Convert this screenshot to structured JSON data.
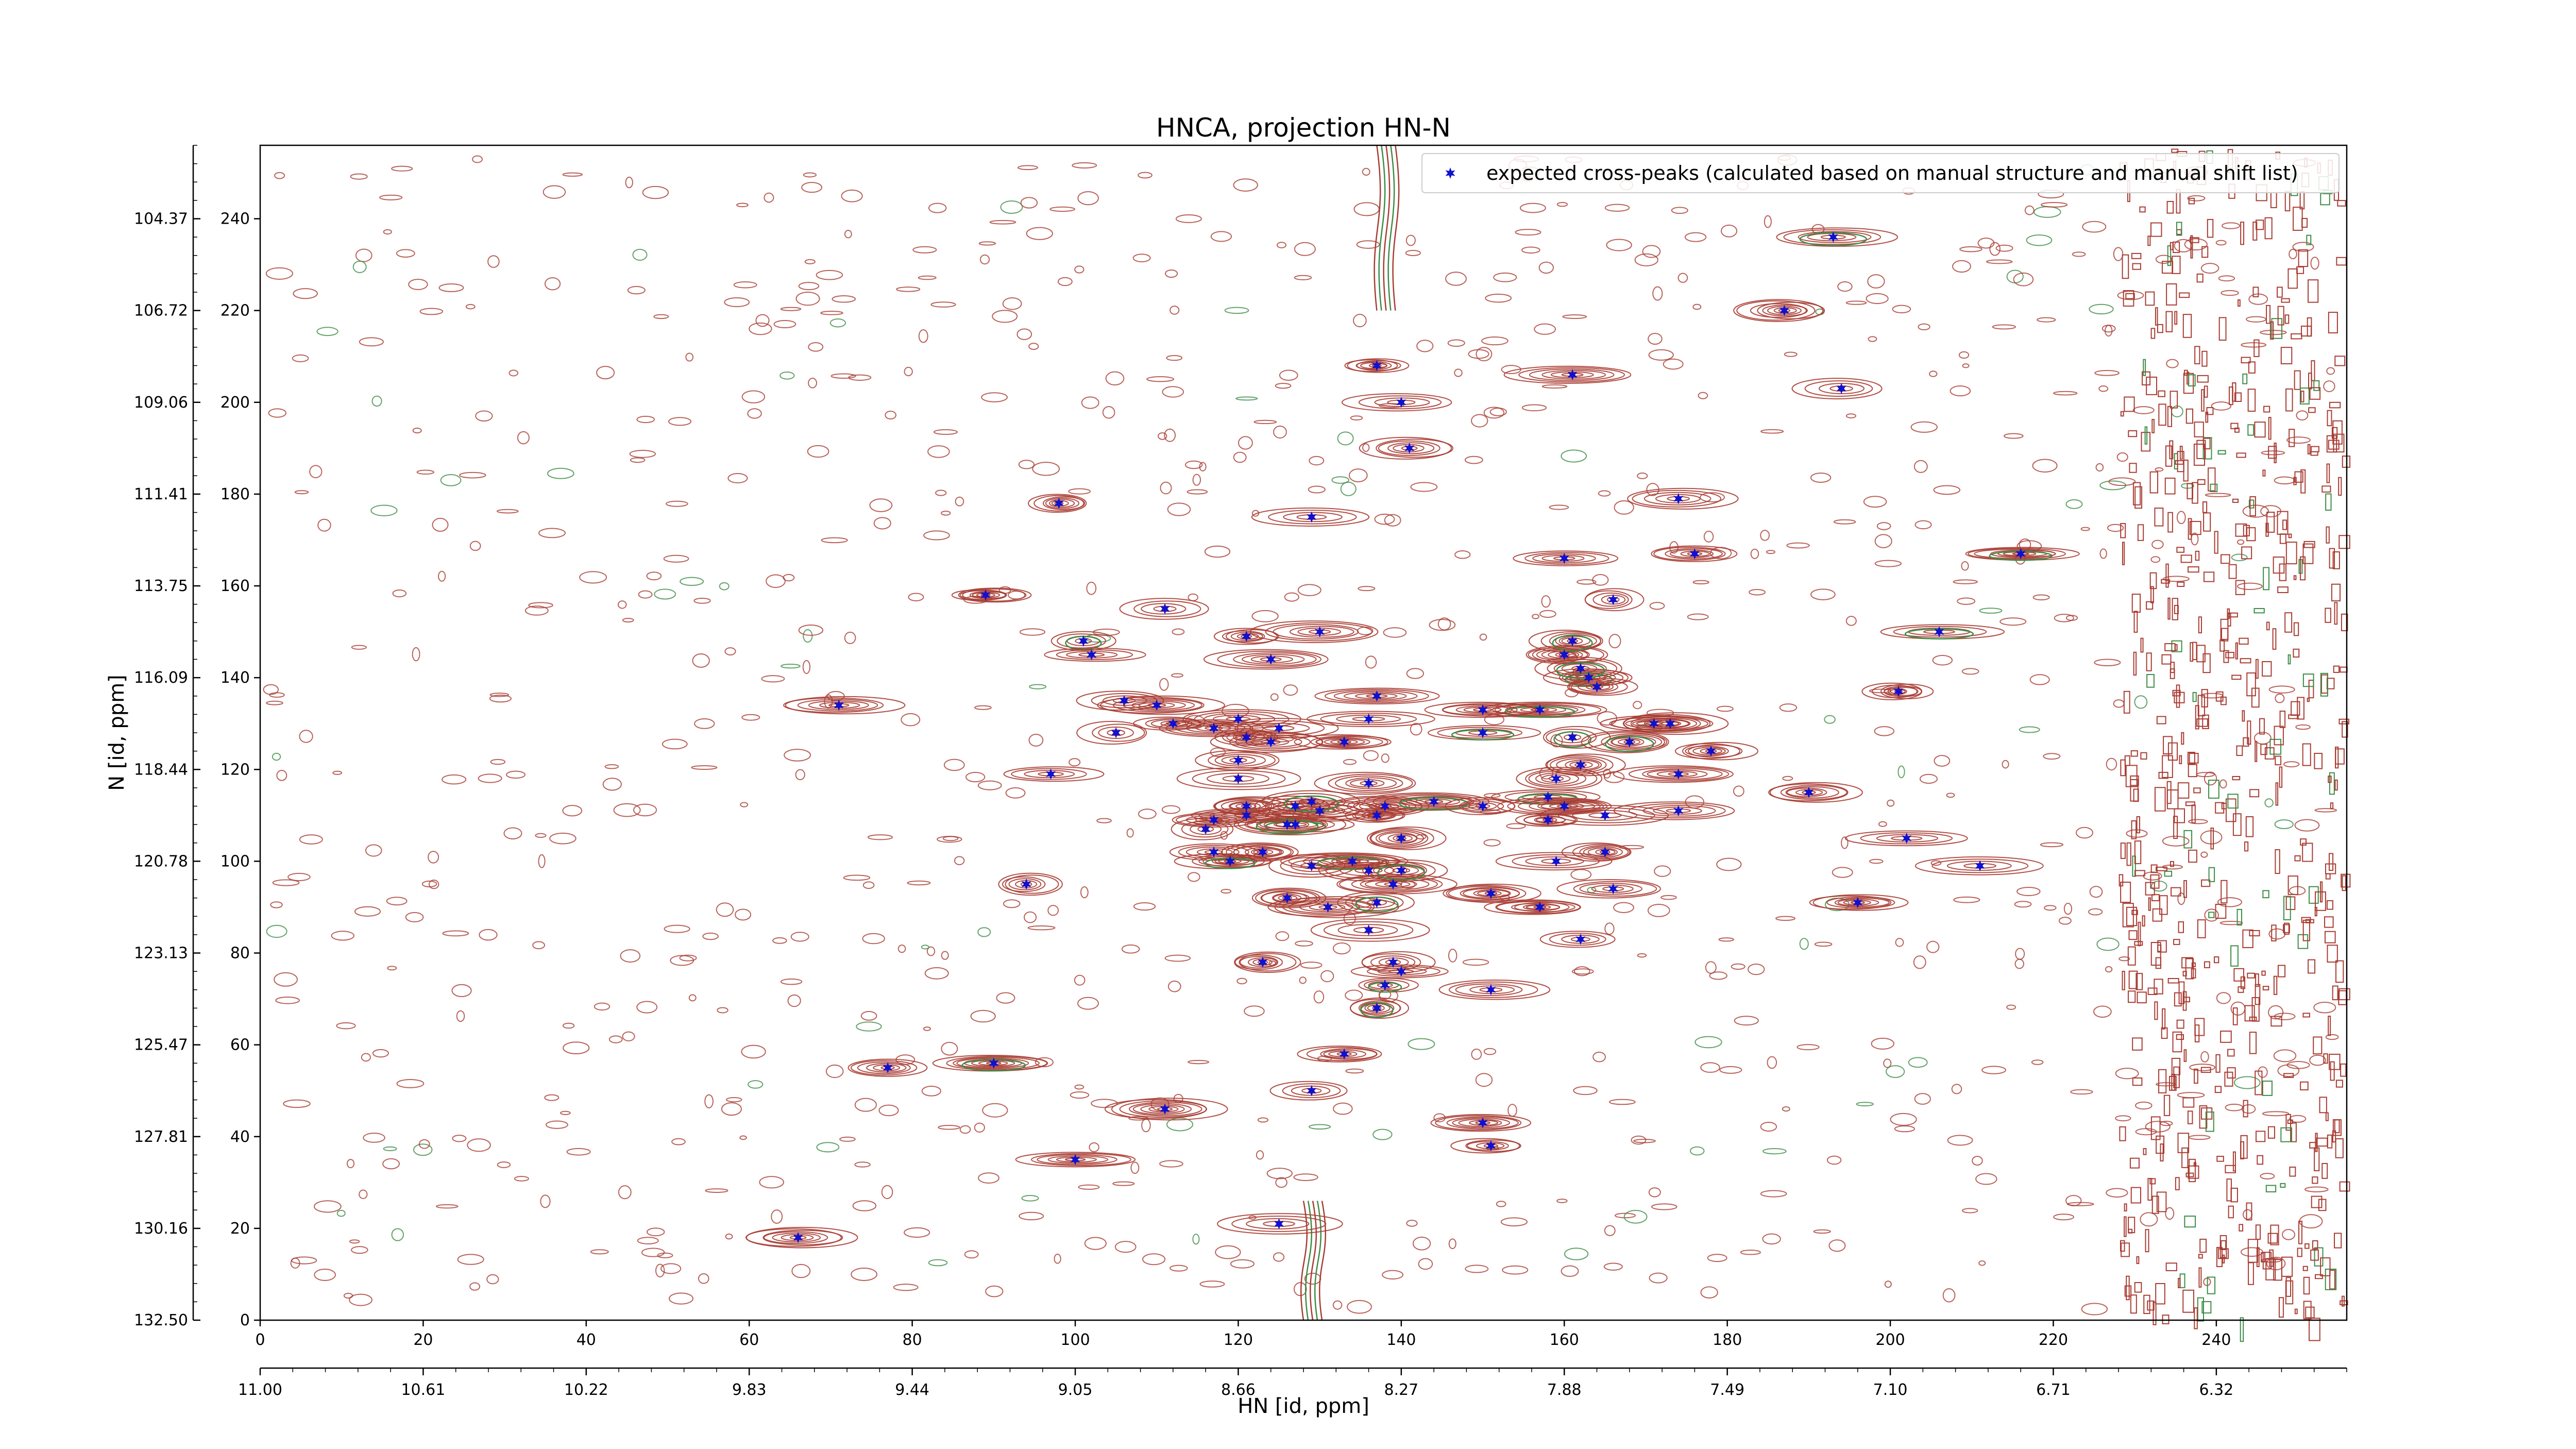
{
  "chart_data": {
    "type": "scatter",
    "title": "HNCA, projection HN-N",
    "xlabel": "HN [id, ppm]",
    "ylabel": "N [id, ppm]",
    "xlim": [
      0,
      256
    ],
    "ylim": [
      0,
      256
    ],
    "x_ticks": [
      0,
      20,
      40,
      60,
      80,
      100,
      120,
      140,
      160,
      180,
      200,
      220,
      240
    ],
    "y_ticks": [
      0,
      20,
      40,
      60,
      80,
      100,
      120,
      140,
      160,
      180,
      200,
      220,
      240
    ],
    "x_ppm_ticks": [
      "11.00",
      "10.61",
      "10.22",
      "9.83",
      "9.44",
      "9.05",
      "8.66",
      "8.27",
      "7.88",
      "7.49",
      "7.10",
      "6.71",
      "6.32"
    ],
    "y_ppm_ticks": [
      "132.50",
      "130.16",
      "127.81",
      "125.47",
      "123.13",
      "120.78",
      "118.44",
      "116.09",
      "113.75",
      "111.41",
      "109.06",
      "106.72",
      "104.37"
    ],
    "legend": {
      "position": "top-right",
      "label": "expected cross-peaks (calculated based on manual structure and manual shift list)"
    },
    "colors": {
      "marker": "#1010d0",
      "contour_positive": "#a83c32",
      "contour_negative": "#3c8c46"
    },
    "series": [
      {
        "name": "expected cross-peaks (calculated based on manual structure and manual shift list)",
        "points": [
          [
            66,
            18
          ],
          [
            77,
            55
          ],
          [
            90,
            56
          ],
          [
            100,
            35
          ],
          [
            111,
            46
          ],
          [
            125,
            21
          ],
          [
            129,
            50
          ],
          [
            133,
            58
          ],
          [
            150,
            43
          ],
          [
            151,
            38
          ],
          [
            94,
            95
          ],
          [
            97,
            119
          ],
          [
            71,
            134
          ],
          [
            89,
            158
          ],
          [
            98,
            178
          ],
          [
            101,
            148
          ],
          [
            102,
            145
          ],
          [
            106,
            135
          ],
          [
            110,
            134
          ],
          [
            111,
            155
          ],
          [
            105,
            128
          ],
          [
            112,
            130
          ],
          [
            117,
            129
          ],
          [
            120,
            131
          ],
          [
            121,
            127
          ],
          [
            124,
            126
          ],
          [
            125,
            129
          ],
          [
            129,
            175
          ],
          [
            130,
            150
          ],
          [
            121,
            149
          ],
          [
            133,
            126
          ],
          [
            137,
            136
          ],
          [
            136,
            131
          ],
          [
            124,
            144
          ],
          [
            140,
            200
          ],
          [
            141,
            190
          ],
          [
            137,
            208
          ],
          [
            121,
            112
          ],
          [
            127,
            112
          ],
          [
            123,
            102
          ],
          [
            126,
            92
          ],
          [
            123,
            78
          ],
          [
            129,
            99
          ],
          [
            134,
            100
          ],
          [
            139,
            95
          ],
          [
            138,
            73
          ],
          [
            137,
            68
          ],
          [
            136,
            98
          ],
          [
            140,
            98
          ],
          [
            140,
            105
          ],
          [
            138,
            112
          ],
          [
            137,
            110
          ],
          [
            136,
            117
          ],
          [
            130,
            111
          ],
          [
            129,
            113
          ],
          [
            127,
            108
          ],
          [
            126,
            108
          ],
          [
            121,
            110
          ],
          [
            117,
            109
          ],
          [
            116,
            107
          ],
          [
            117,
            102
          ],
          [
            119,
            100
          ],
          [
            120,
            118
          ],
          [
            120,
            122
          ],
          [
            131,
            90
          ],
          [
            136,
            85
          ],
          [
            137,
            91
          ],
          [
            139,
            78
          ],
          [
            140,
            76
          ],
          [
            144,
            113
          ],
          [
            150,
            112
          ],
          [
            151,
            93
          ],
          [
            151,
            72
          ],
          [
            158,
            114
          ],
          [
            160,
            112
          ],
          [
            162,
            121
          ],
          [
            157,
            90
          ],
          [
            159,
            100
          ],
          [
            158,
            109
          ],
          [
            165,
            110
          ],
          [
            165,
            102
          ],
          [
            166,
            94
          ],
          [
            162,
            83
          ],
          [
            159,
            118
          ],
          [
            161,
            127
          ],
          [
            163,
            140
          ],
          [
            166,
            157
          ],
          [
            160,
            145
          ],
          [
            157,
            133
          ],
          [
            150,
            133
          ],
          [
            161,
            148
          ],
          [
            162,
            142
          ],
          [
            164,
            138
          ],
          [
            171,
            130
          ],
          [
            174,
            111
          ],
          [
            173,
            130
          ],
          [
            174,
            179
          ],
          [
            176,
            167
          ],
          [
            161,
            206
          ],
          [
            160,
            166
          ],
          [
            187,
            220
          ],
          [
            193,
            236
          ],
          [
            194,
            203
          ],
          [
            196,
            91
          ],
          [
            201,
            137
          ],
          [
            202,
            105
          ],
          [
            206,
            150
          ],
          [
            211,
            99
          ],
          [
            216,
            167
          ],
          [
            190,
            115
          ],
          [
            174,
            119
          ],
          [
            178,
            124
          ],
          [
            168,
            126
          ],
          [
            150,
            128
          ]
        ]
      }
    ]
  }
}
